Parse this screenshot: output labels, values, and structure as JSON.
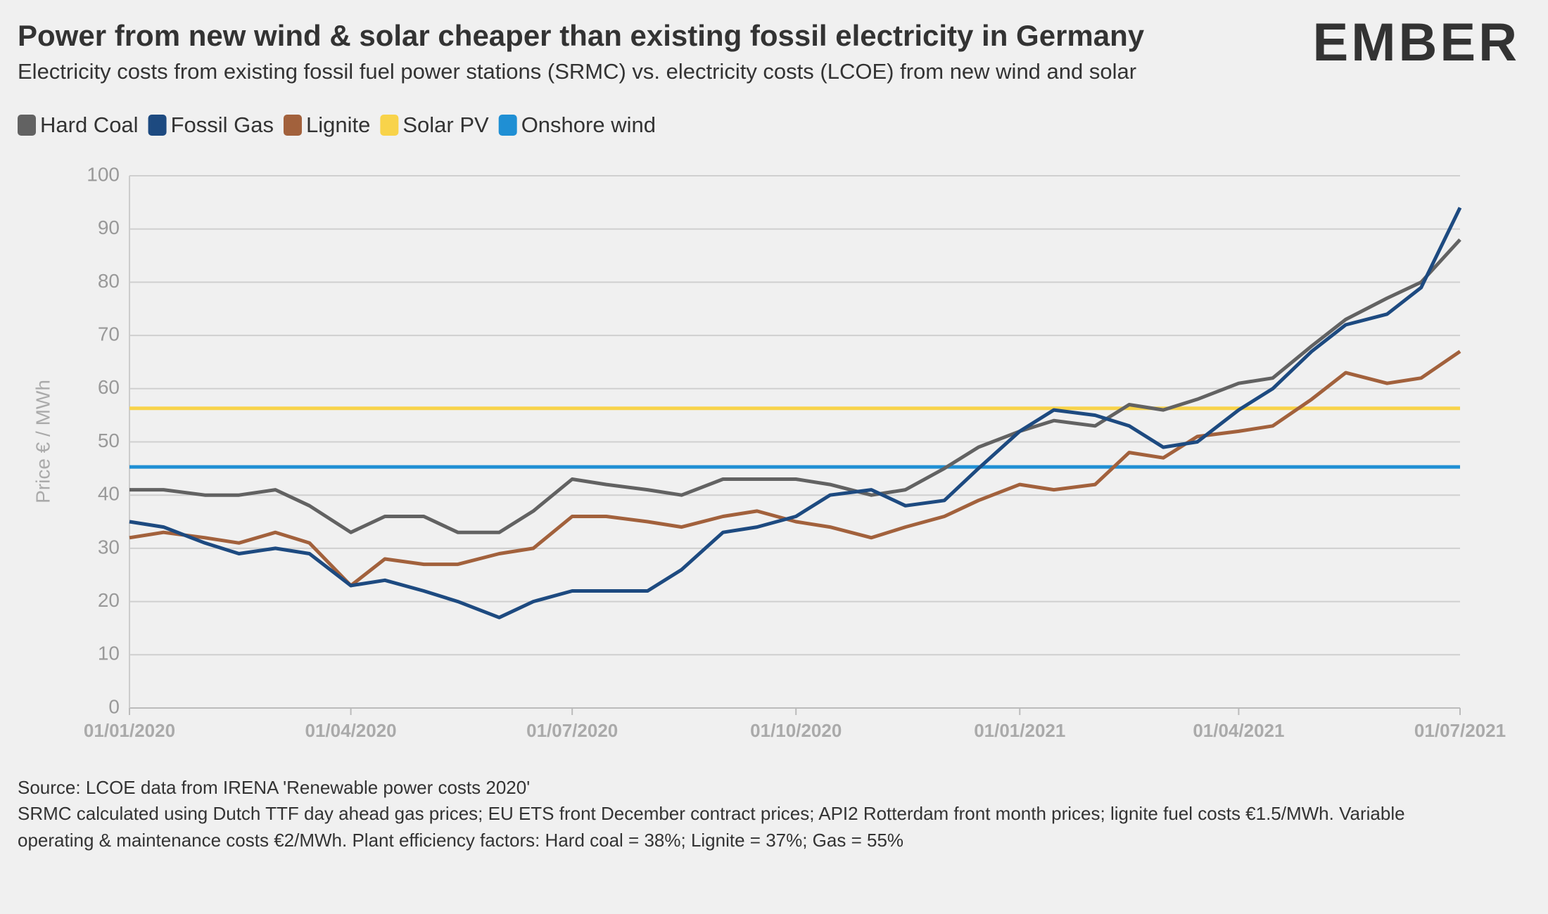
{
  "chart_data": {
    "type": "line",
    "title": "Power from new wind & solar cheaper than existing fossil electricity in Germany",
    "subtitle": "Electricity costs from existing fossil fuel power stations (SRMC) vs. electricity costs (LCOE) from new wind and solar",
    "logo": "EMBER",
    "y_label": "Price € / MWh",
    "x": [
      "2020-01-01",
      "2020-01-15",
      "2020-02-01",
      "2020-02-15",
      "2020-03-01",
      "2020-03-15",
      "2020-04-01",
      "2020-04-15",
      "2020-05-01",
      "2020-05-15",
      "2020-06-01",
      "2020-06-15",
      "2020-07-01",
      "2020-07-15",
      "2020-08-01",
      "2020-08-15",
      "2020-09-01",
      "2020-09-15",
      "2020-10-01",
      "2020-10-15",
      "2020-11-01",
      "2020-11-15",
      "2020-12-01",
      "2020-12-15",
      "2021-01-01",
      "2021-01-15",
      "2021-02-01",
      "2021-02-15",
      "2021-03-01",
      "2021-03-15",
      "2021-04-01",
      "2021-04-15",
      "2021-05-01",
      "2021-05-15",
      "2021-06-01",
      "2021-06-15",
      "2021-07-01"
    ],
    "series": [
      {
        "name": "Hard Coal",
        "color": "#626262",
        "values": [
          41,
          41,
          40,
          40,
          41,
          38,
          33,
          36,
          36,
          33,
          33,
          37,
          43,
          42,
          41,
          40,
          43,
          43,
          43,
          42,
          40,
          41,
          45,
          49,
          52,
          54,
          53,
          57,
          56,
          58,
          61,
          62,
          68,
          73,
          77,
          80,
          88
        ]
      },
      {
        "name": "Fossil Gas",
        "color": "#1d4a80",
        "values": [
          35,
          34,
          31,
          29,
          30,
          29,
          23,
          24,
          22,
          20,
          17,
          20,
          22,
          22,
          22,
          26,
          33,
          34,
          36,
          40,
          41,
          38,
          39,
          45,
          52,
          56,
          55,
          53,
          49,
          50,
          56,
          60,
          67,
          72,
          74,
          79,
          94
        ]
      },
      {
        "name": "Lignite",
        "color": "#a2613c",
        "values": [
          32,
          33,
          32,
          31,
          33,
          31,
          23,
          28,
          27,
          27,
          29,
          30,
          36,
          36,
          35,
          34,
          36,
          37,
          35,
          34,
          32,
          34,
          36,
          39,
          42,
          41,
          42,
          48,
          47,
          51,
          52,
          53,
          58,
          63,
          61,
          62,
          67
        ]
      },
      {
        "name": "Solar PV",
        "color": "#f8d34a",
        "values": [
          56.3,
          56.3,
          56.3,
          56.3,
          56.3,
          56.3,
          56.3,
          56.3,
          56.3,
          56.3,
          56.3,
          56.3,
          56.3,
          56.3,
          56.3,
          56.3,
          56.3,
          56.3,
          56.3,
          56.3,
          56.3,
          56.3,
          56.3,
          56.3,
          56.3,
          56.3,
          56.3,
          56.3,
          56.3,
          56.3,
          56.3,
          56.3,
          56.3,
          56.3,
          56.3,
          56.3,
          56.3
        ]
      },
      {
        "name": "Onshore wind",
        "color": "#1f8fd4",
        "values": [
          45.3,
          45.3,
          45.3,
          45.3,
          45.3,
          45.3,
          45.3,
          45.3,
          45.3,
          45.3,
          45.3,
          45.3,
          45.3,
          45.3,
          45.3,
          45.3,
          45.3,
          45.3,
          45.3,
          45.3,
          45.3,
          45.3,
          45.3,
          45.3,
          45.3,
          45.3,
          45.3,
          45.3,
          45.3,
          45.3,
          45.3,
          45.3,
          45.3,
          45.3,
          45.3,
          45.3,
          45.3
        ]
      }
    ],
    "xlim": [
      "2020-01-01",
      "2021-07-01"
    ],
    "xticks": [
      {
        "value": "2020-01-01",
        "label": "01/01/2020"
      },
      {
        "value": "2020-04-01",
        "label": "01/04/2020"
      },
      {
        "value": "2020-07-01",
        "label": "01/07/2020"
      },
      {
        "value": "2020-10-01",
        "label": "01/10/2020"
      },
      {
        "value": "2021-01-01",
        "label": "01/01/2021"
      },
      {
        "value": "2021-04-01",
        "label": "01/04/2021"
      },
      {
        "value": "2021-07-01",
        "label": "01/07/2021"
      }
    ],
    "ylim": [
      0,
      100
    ],
    "yticks": [
      0,
      10,
      20,
      30,
      40,
      50,
      60,
      70,
      80,
      90,
      100
    ],
    "grid": true,
    "legend": "top-left",
    "notes": [
      "Source: LCOE data from IRENA 'Renewable power costs 2020'",
      "SRMC calculated using Dutch TTF day ahead gas prices; EU ETS front December contract prices; API2 Rotterdam front month prices; lignite fuel costs €1.5/MWh. Variable",
      "operating & maintenance costs €2/MWh. Plant efficiency factors: Hard coal = 38%; Lignite = 37%; Gas = 55%"
    ]
  }
}
